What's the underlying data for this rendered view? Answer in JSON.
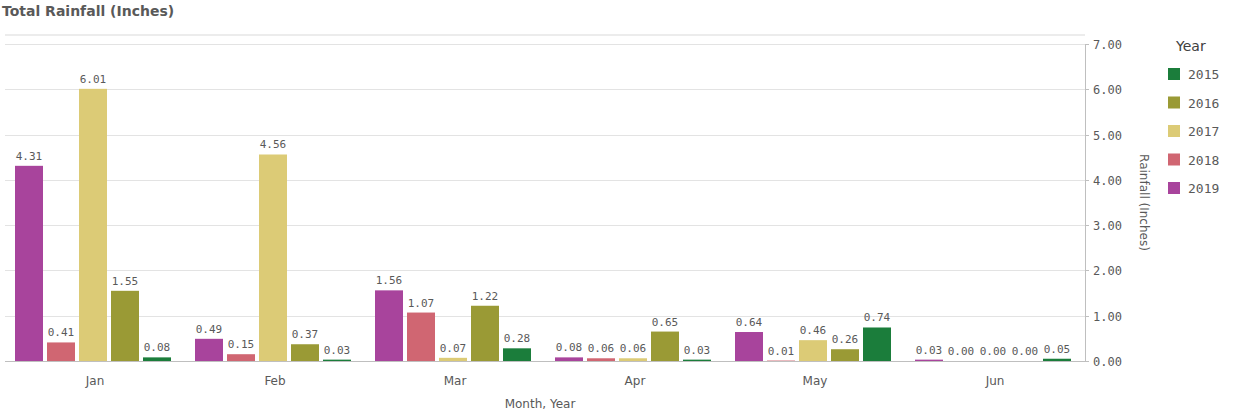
{
  "chart_data": {
    "type": "bar",
    "title": "Total Rainfall (Inches)",
    "x_label": "Month, Year",
    "y_label": "Rainfall (Inches)",
    "legend_title": "Year",
    "categories": [
      "Jan",
      "Feb",
      "Mar",
      "Apr",
      "May",
      "Jun"
    ],
    "series": [
      {
        "name": "2015",
        "color": "#1b7d3b",
        "values": [
          0.08,
          0.03,
          0.28,
          0.03,
          0.74,
          0.05
        ],
        "value_labels": [
          "0.08",
          "0.03",
          "0.28",
          "0.03",
          "0.74",
          "0.05"
        ]
      },
      {
        "name": "2016",
        "color": "#9a9a35",
        "values": [
          1.55,
          0.37,
          1.22,
          0.65,
          0.26,
          0
        ],
        "value_labels": [
          "1.55",
          "0.37",
          "1.22",
          "0.65",
          "0.26",
          "0.00"
        ]
      },
      {
        "name": "2017",
        "color": "#dccb76",
        "values": [
          6.01,
          4.56,
          0.07,
          0.06,
          0.46,
          0
        ],
        "value_labels": [
          "6.01",
          "4.56",
          "0.07",
          "0.06",
          "0.46",
          "0.00"
        ]
      },
      {
        "name": "2018",
        "color": "#d06672",
        "values": [
          0.41,
          0.15,
          1.07,
          0.06,
          0.01,
          0
        ],
        "value_labels": [
          "0.41",
          "0.15",
          "1.07",
          "0.06",
          "0.01",
          "0.00"
        ]
      },
      {
        "name": "2019",
        "color": "#a8449c",
        "values": [
          4.31,
          0.49,
          1.56,
          0.08,
          0.64,
          0.03
        ],
        "value_labels": [
          "4.31",
          "0.49",
          "1.56",
          "0.08",
          "0.64",
          "0.03"
        ]
      }
    ],
    "ylim": [
      0,
      7
    ],
    "yticks": [
      {
        "value": 0,
        "label": "0.00"
      },
      {
        "value": 1,
        "label": "1.00"
      },
      {
        "value": 2,
        "label": "2.00"
      },
      {
        "value": 3,
        "label": "3.00"
      },
      {
        "value": 4,
        "label": "4.00"
      },
      {
        "value": 5,
        "label": "5.00"
      },
      {
        "value": 6,
        "label": "6.00"
      },
      {
        "value": 7,
        "label": "7.00"
      }
    ],
    "grid": true,
    "legend": "right",
    "data_labels": true
  }
}
